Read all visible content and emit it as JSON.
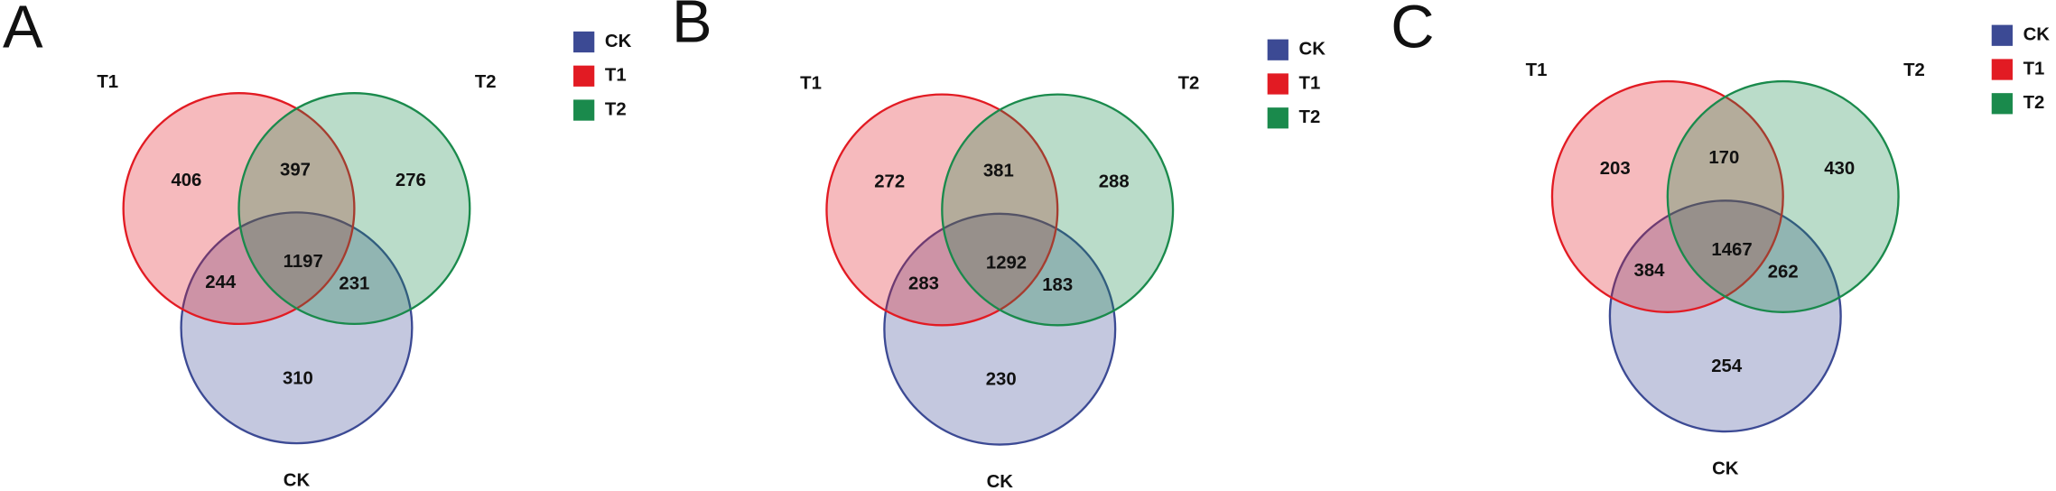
{
  "chart_data": [
    {
      "type": "venn",
      "panel": "A",
      "sets": [
        {
          "name": "CK",
          "color": "#3c4a94"
        },
        {
          "name": "T1",
          "color": "#e21b23"
        },
        {
          "name": "T2",
          "color": "#1a8a4c"
        }
      ],
      "regions": [
        {
          "in": [
            "T1"
          ],
          "value": 406
        },
        {
          "in": [
            "T1",
            "T2"
          ],
          "value": 397
        },
        {
          "in": [
            "T2"
          ],
          "value": 276
        },
        {
          "in": [
            "CK",
            "T1",
            "T2"
          ],
          "value": 1197
        },
        {
          "in": [
            "CK",
            "T1"
          ],
          "value": 244
        },
        {
          "in": [
            "CK",
            "T2"
          ],
          "value": 231
        },
        {
          "in": [
            "CK"
          ],
          "value": 310
        }
      ]
    },
    {
      "type": "venn",
      "panel": "B",
      "sets": [
        {
          "name": "CK",
          "color": "#3c4a94"
        },
        {
          "name": "T1",
          "color": "#e21b23"
        },
        {
          "name": "T2",
          "color": "#1a8a4c"
        }
      ],
      "regions": [
        {
          "in": [
            "T1"
          ],
          "value": 272
        },
        {
          "in": [
            "T1",
            "T2"
          ],
          "value": 381
        },
        {
          "in": [
            "T2"
          ],
          "value": 288
        },
        {
          "in": [
            "CK",
            "T1",
            "T2"
          ],
          "value": 1292
        },
        {
          "in": [
            "CK",
            "T1"
          ],
          "value": 283
        },
        {
          "in": [
            "CK",
            "T2"
          ],
          "value": 183
        },
        {
          "in": [
            "CK"
          ],
          "value": 230
        }
      ]
    },
    {
      "type": "venn",
      "panel": "C",
      "sets": [
        {
          "name": "CK",
          "color": "#3c4a94"
        },
        {
          "name": "T1",
          "color": "#e21b23"
        },
        {
          "name": "T2",
          "color": "#1a8a4c"
        }
      ],
      "regions": [
        {
          "in": [
            "T1"
          ],
          "value": 203
        },
        {
          "in": [
            "T1",
            "T2"
          ],
          "value": 170
        },
        {
          "in": [
            "T2"
          ],
          "value": 430
        },
        {
          "in": [
            "CK",
            "T1",
            "T2"
          ],
          "value": 1467
        },
        {
          "in": [
            "CK",
            "T1"
          ],
          "value": 384
        },
        {
          "in": [
            "CK",
            "T2"
          ],
          "value": 262
        },
        {
          "in": [
            "CK"
          ],
          "value": 254
        }
      ]
    }
  ]
}
